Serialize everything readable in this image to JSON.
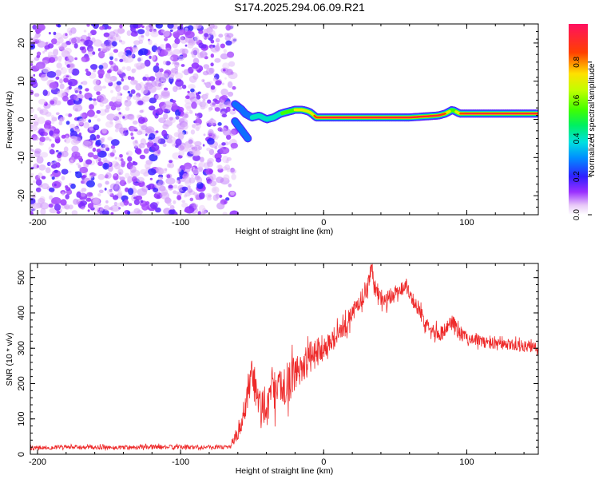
{
  "title": "S174.2025.294.06.09.R21",
  "chart_data": [
    {
      "type": "heatmap",
      "title": "S174.2025.294.06.09.R21",
      "xlabel": "Height of straight line (km)",
      "ylabel": "Frequency (Hz)",
      "xlim": [
        -205,
        150
      ],
      "ylim": [
        -25,
        25
      ],
      "xticks": [
        -200,
        -100,
        0,
        100
      ],
      "yticks": [
        -20,
        -10,
        0,
        10,
        20
      ],
      "noise_region_x": [
        -205,
        -62
      ],
      "signal_track": {
        "x": [
          -62,
          -57,
          -55,
          -50,
          -45,
          -40,
          -35,
          -30,
          -25,
          -20,
          -15,
          -10,
          -5,
          0,
          20,
          40,
          60,
          80,
          85,
          90,
          95,
          100,
          120,
          150
        ],
        "frequency": [
          4.0,
          2.5,
          1.5,
          0.5,
          1.0,
          0.0,
          0.5,
          1.5,
          2.0,
          2.5,
          2.5,
          2.0,
          0.5,
          0.5,
          0.5,
          0.5,
          0.5,
          1.0,
          1.5,
          2.5,
          1.5,
          1.5,
          1.5,
          1.5
        ],
        "amplitude": [
          0.35,
          0.3,
          0.3,
          0.35,
          0.4,
          0.4,
          0.45,
          0.5,
          0.55,
          0.65,
          0.7,
          0.75,
          0.85,
          0.95,
          0.98,
          0.98,
          0.97,
          0.97,
          0.8,
          0.55,
          0.85,
          0.95,
          0.97,
          0.97
        ]
      },
      "branch": {
        "x": [
          -62,
          -58,
          -55,
          -52
        ],
        "frequency": [
          -0.5,
          -2.5,
          -4.0,
          -5.5
        ],
        "amplitude": [
          0.3,
          0.3,
          0.3,
          0.3
        ]
      },
      "colorbar": {
        "label": "Normalized spectral amplitude",
        "range": [
          0,
          1
        ],
        "ticks": [
          "0.0",
          "0.2",
          "0.4",
          "0.6",
          "0.8"
        ],
        "tick_values": [
          0,
          0.2,
          0.4,
          0.6,
          0.8
        ]
      }
    },
    {
      "type": "line",
      "xlabel": "Height of straight line (km)",
      "ylabel": "SNR (10 * v/v)",
      "xlim": [
        -205,
        150
      ],
      "ylim": [
        0,
        540
      ],
      "xticks": [
        -200,
        -100,
        0,
        100
      ],
      "yticks": [
        0,
        100,
        200,
        300,
        400,
        500
      ],
      "color": "#ee2a2a",
      "series": [
        {
          "name": "SNR",
          "x": [
            -205,
            -180,
            -150,
            -120,
            -90,
            -65,
            -55,
            -50,
            -45,
            -40,
            -35,
            -30,
            -25,
            -20,
            -15,
            -10,
            -5,
            0,
            5,
            10,
            15,
            20,
            25,
            30,
            33,
            36,
            40,
            45,
            50,
            55,
            58,
            62,
            66,
            70,
            75,
            80,
            85,
            90,
            95,
            100,
            110,
            120,
            130,
            140,
            150
          ],
          "y": [
            18,
            20,
            19,
            21,
            20,
            21,
            110,
            230,
            120,
            150,
            170,
            185,
            200,
            230,
            250,
            270,
            290,
            300,
            320,
            340,
            360,
            400,
            430,
            470,
            520,
            470,
            440,
            430,
            460,
            470,
            480,
            440,
            410,
            380,
            360,
            340,
            350,
            380,
            340,
            330,
            320,
            310,
            310,
            305,
            300
          ],
          "noise_amplitude": [
            10,
            10,
            10,
            10,
            10,
            10,
            70,
            90,
            110,
            100,
            95,
            95,
            95,
            90,
            85,
            80,
            70,
            60,
            55,
            50,
            48,
            45,
            45,
            45,
            40,
            40,
            40,
            38,
            36,
            35,
            35,
            35,
            35,
            35,
            35,
            35,
            35,
            35,
            35,
            30,
            28,
            28,
            28,
            26,
            26
          ]
        }
      ]
    }
  ]
}
